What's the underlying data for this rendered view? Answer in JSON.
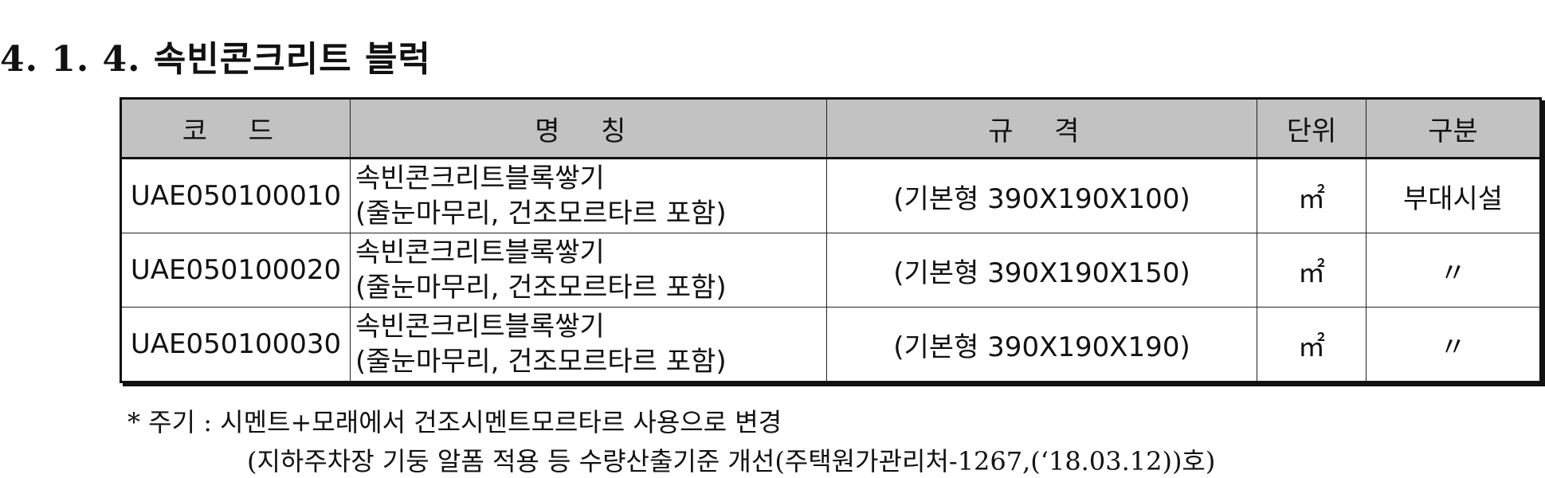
{
  "section": {
    "title": "4. 1. 4. 속빈콘크리트 블럭"
  },
  "table": {
    "headers": {
      "code": "코 드",
      "name": "명 칭",
      "spec": "규 격",
      "unit": "단위",
      "category": "구분"
    },
    "rows": [
      {
        "code": "UAE050100010",
        "name_line1": "속빈콘크리트블록쌓기",
        "name_line2": "(줄눈마무리, 건조모르타르 포함)",
        "spec": "(기본형 390X190X100)",
        "unit": "㎡",
        "category": "부대시설"
      },
      {
        "code": "UAE050100020",
        "name_line1": "속빈콘크리트블록쌓기",
        "name_line2": "(줄눈마무리, 건조모르타르 포함)",
        "spec": "(기본형 390X190X150)",
        "unit": "㎡",
        "category": "〃"
      },
      {
        "code": "UAE050100030",
        "name_line1": "속빈콘크리트블록쌓기",
        "name_line2": "(줄눈마무리, 건조모르타르 포함)",
        "spec": "(기본형 390X190X190)",
        "unit": "㎡",
        "category": "〃"
      }
    ]
  },
  "notes": {
    "line1": "* 주기 : 시멘트+모래에서 건조시멘트모르타르 사용으로 변경",
    "line2": "(지하주차장 기둥 알폼 적용 등 수량산출기준 개선(주택원가관리처-1267,(‘18.03.12))호)"
  }
}
